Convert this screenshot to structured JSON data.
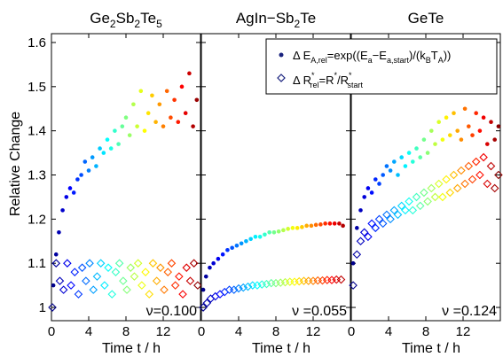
{
  "figure": {
    "ylabel": "Relative Change",
    "legend": {
      "energy": "Δ E",
      "energy_sub": "A,rel",
      "energy_formula": "=exp((E",
      "energy_f_sub1": "a",
      "energy_f_mid": "−E",
      "energy_f_sub2": "a,start",
      "energy_f_mid2": ")/(k",
      "energy_f_sub3": "B",
      "energy_f_mid3": "T",
      "energy_f_sub4": "A",
      "energy_f_end": "))",
      "resist": "Δ R",
      "resist_sup": "*",
      "resist_sub": "rel",
      "resist_formula": "=R",
      "resist_sup2": "*",
      "resist_mid": "/R",
      "resist_sup3": "*",
      "resist_sub3": "start"
    },
    "series_markers": {
      "energy": "dot",
      "resistance": "diamond",
      "color_scale": "jet (time-coded)"
    }
  },
  "chart_data": [
    {
      "type": "scatter",
      "title": "Ge2Sb2Te5",
      "title_parts": [
        "Ge",
        "2",
        "Sb",
        "2",
        "Te",
        "5"
      ],
      "annotation": "ν=0.100",
      "xlabel": "Time t / h",
      "ylabel": "Relative Change",
      "xlim": [
        0,
        16
      ],
      "ylim": [
        0.97,
        1.62
      ],
      "xticks": [
        "0",
        "4",
        "8",
        "12"
      ],
      "yticks": [
        "1",
        "1.1",
        "1.2",
        "1.3",
        "1.4",
        "1.5",
        "1.6"
      ],
      "series": [
        {
          "marker": "dot",
          "points": [
            [
              0.2,
              1.05
            ],
            [
              0.5,
              1.12
            ],
            [
              0.8,
              1.17
            ],
            [
              1.2,
              1.22
            ],
            [
              1.6,
              1.25
            ],
            [
              2.0,
              1.27
            ],
            [
              2.4,
              1.26
            ],
            [
              2.8,
              1.29
            ],
            [
              3.2,
              1.3
            ],
            [
              3.6,
              1.33
            ],
            [
              4.0,
              1.31
            ],
            [
              4.4,
              1.34
            ],
            [
              4.8,
              1.32
            ],
            [
              5.2,
              1.36
            ],
            [
              5.6,
              1.35
            ],
            [
              6.0,
              1.38
            ],
            [
              6.4,
              1.36
            ],
            [
              6.8,
              1.4
            ],
            [
              7.2,
              1.37
            ],
            [
              7.6,
              1.41
            ],
            [
              8.0,
              1.43
            ],
            [
              8.4,
              1.39
            ],
            [
              8.8,
              1.46
            ],
            [
              9.2,
              1.41
            ],
            [
              9.6,
              1.49
            ],
            [
              10.0,
              1.4
            ],
            [
              10.4,
              1.44
            ],
            [
              10.8,
              1.48
            ],
            [
              11.2,
              1.42
            ],
            [
              11.6,
              1.46
            ],
            [
              12.0,
              1.41
            ],
            [
              12.4,
              1.49
            ],
            [
              12.8,
              1.43
            ],
            [
              13.2,
              1.47
            ],
            [
              13.6,
              1.42
            ],
            [
              14.0,
              1.5
            ],
            [
              14.4,
              1.44
            ],
            [
              14.8,
              1.53
            ],
            [
              15.2,
              1.41
            ],
            [
              15.6,
              1.47
            ]
          ]
        },
        {
          "marker": "diamond",
          "points": [
            [
              0.1,
              1.0
            ],
            [
              0.5,
              1.1
            ],
            [
              0.9,
              1.06
            ],
            [
              1.3,
              1.04
            ],
            [
              1.7,
              1.1
            ],
            [
              2.1,
              1.05
            ],
            [
              2.5,
              1.08
            ],
            [
              2.9,
              1.03
            ],
            [
              3.3,
              1.09
            ],
            [
              3.7,
              1.06
            ],
            [
              4.1,
              1.1
            ],
            [
              4.5,
              1.04
            ],
            [
              4.9,
              1.07
            ],
            [
              5.3,
              1.1
            ],
            [
              5.7,
              1.05
            ],
            [
              6.1,
              1.09
            ],
            [
              6.5,
              1.03
            ],
            [
              6.9,
              1.08
            ],
            [
              7.3,
              1.1
            ],
            [
              7.7,
              1.06
            ],
            [
              8.1,
              1.04
            ],
            [
              8.5,
              1.09
            ],
            [
              8.9,
              1.07
            ],
            [
              9.3,
              1.1
            ],
            [
              9.7,
              1.05
            ],
            [
              10.1,
              1.08
            ],
            [
              10.5,
              1.03
            ],
            [
              10.9,
              1.1
            ],
            [
              11.3,
              1.06
            ],
            [
              11.7,
              1.09
            ],
            [
              12.1,
              1.04
            ],
            [
              12.5,
              1.08
            ],
            [
              12.9,
              1.1
            ],
            [
              13.3,
              1.05
            ],
            [
              13.7,
              1.07
            ],
            [
              14.1,
              1.03
            ],
            [
              14.5,
              1.09
            ],
            [
              14.9,
              1.06
            ],
            [
              15.3,
              1.1
            ],
            [
              15.7,
              1.05
            ]
          ]
        }
      ]
    },
    {
      "type": "scatter",
      "title": "AgIn−Sb2Te",
      "title_parts": [
        "AgIn−Sb",
        "2",
        "Te",
        "",
        "",
        ""
      ],
      "annotation": "ν =0.055",
      "xlabel": "Time t / h",
      "xlim": [
        0,
        16
      ],
      "ylim": [
        0.97,
        1.62
      ],
      "xticks": [
        "0",
        "4",
        "8",
        "12"
      ],
      "series": [
        {
          "marker": "dot",
          "points": [
            [
              0.2,
              1.04
            ],
            [
              0.5,
              1.07
            ],
            [
              0.9,
              1.09
            ],
            [
              1.3,
              1.1
            ],
            [
              1.8,
              1.11
            ],
            [
              2.3,
              1.12
            ],
            [
              2.8,
              1.13
            ],
            [
              3.3,
              1.135
            ],
            [
              3.8,
              1.14
            ],
            [
              4.3,
              1.145
            ],
            [
              4.8,
              1.15
            ],
            [
              5.3,
              1.155
            ],
            [
              5.8,
              1.16
            ],
            [
              6.3,
              1.16
            ],
            [
              6.8,
              1.165
            ],
            [
              7.3,
              1.17
            ],
            [
              7.8,
              1.17
            ],
            [
              8.3,
              1.172
            ],
            [
              8.8,
              1.175
            ],
            [
              9.3,
              1.178
            ],
            [
              9.8,
              1.18
            ],
            [
              10.3,
              1.18
            ],
            [
              10.8,
              1.182
            ],
            [
              11.3,
              1.185
            ],
            [
              11.8,
              1.185
            ],
            [
              12.3,
              1.187
            ],
            [
              12.8,
              1.188
            ],
            [
              13.3,
              1.19
            ],
            [
              13.8,
              1.19
            ],
            [
              14.3,
              1.19
            ],
            [
              14.8,
              1.19
            ],
            [
              15.2,
              1.185
            ]
          ]
        },
        {
          "marker": "diamond",
          "points": [
            [
              0.2,
              1.0
            ],
            [
              0.6,
              1.01
            ],
            [
              1.0,
              1.02
            ],
            [
              1.5,
              1.025
            ],
            [
              2.0,
              1.03
            ],
            [
              2.5,
              1.035
            ],
            [
              3.0,
              1.04
            ],
            [
              3.5,
              1.04
            ],
            [
              4.0,
              1.043
            ],
            [
              4.5,
              1.045
            ],
            [
              5.0,
              1.047
            ],
            [
              5.5,
              1.05
            ],
            [
              6.0,
              1.05
            ],
            [
              6.5,
              1.052
            ],
            [
              7.0,
              1.053
            ],
            [
              7.5,
              1.055
            ],
            [
              8.0,
              1.055
            ],
            [
              8.5,
              1.056
            ],
            [
              9.0,
              1.057
            ],
            [
              9.5,
              1.058
            ],
            [
              10.0,
              1.058
            ],
            [
              10.5,
              1.059
            ],
            [
              11.0,
              1.06
            ],
            [
              11.5,
              1.06
            ],
            [
              12.0,
              1.06
            ],
            [
              12.5,
              1.061
            ],
            [
              13.0,
              1.061
            ],
            [
              13.5,
              1.062
            ],
            [
              14.0,
              1.062
            ],
            [
              14.5,
              1.063
            ],
            [
              15.0,
              1.063
            ]
          ]
        }
      ]
    },
    {
      "type": "scatter",
      "title": "GeTe",
      "title_parts": [
        "GeTe",
        "",
        "",
        "",
        "",
        ""
      ],
      "annotation": "ν =0.124",
      "xlabel": "Time t / h",
      "xlim": [
        0,
        16
      ],
      "ylim": [
        0.97,
        1.62
      ],
      "xticks": [
        "0",
        "4",
        "8",
        "12"
      ],
      "series": [
        {
          "marker": "dot",
          "points": [
            [
              0.2,
              1.1
            ],
            [
              0.6,
              1.18
            ],
            [
              1.0,
              1.22
            ],
            [
              1.4,
              1.25
            ],
            [
              1.8,
              1.27
            ],
            [
              2.2,
              1.26
            ],
            [
              2.6,
              1.29
            ],
            [
              3.0,
              1.28
            ],
            [
              3.4,
              1.3
            ],
            [
              3.8,
              1.32
            ],
            [
              4.2,
              1.31
            ],
            [
              4.6,
              1.33
            ],
            [
              5.0,
              1.3
            ],
            [
              5.4,
              1.34
            ],
            [
              5.8,
              1.32
            ],
            [
              6.2,
              1.35
            ],
            [
              6.6,
              1.33
            ],
            [
              7.0,
              1.36
            ],
            [
              7.4,
              1.34
            ],
            [
              7.8,
              1.38
            ],
            [
              8.2,
              1.35
            ],
            [
              8.6,
              1.4
            ],
            [
              9.0,
              1.37
            ],
            [
              9.4,
              1.42
            ],
            [
              9.8,
              1.38
            ],
            [
              10.2,
              1.43
            ],
            [
              10.6,
              1.39
            ],
            [
              11.0,
              1.44
            ],
            [
              11.4,
              1.4
            ],
            [
              11.8,
              1.38
            ],
            [
              12.2,
              1.45
            ],
            [
              12.6,
              1.41
            ],
            [
              13.0,
              1.39
            ],
            [
              13.4,
              1.44
            ],
            [
              13.8,
              1.4
            ],
            [
              14.2,
              1.43
            ],
            [
              14.6,
              1.37
            ],
            [
              15.0,
              1.42
            ],
            [
              15.4,
              1.38
            ],
            [
              15.8,
              1.41
            ]
          ]
        },
        {
          "marker": "diamond",
          "points": [
            [
              0.2,
              1.05
            ],
            [
              0.6,
              1.12
            ],
            [
              1.0,
              1.15
            ],
            [
              1.4,
              1.17
            ],
            [
              1.8,
              1.16
            ],
            [
              2.2,
              1.19
            ],
            [
              2.6,
              1.18
            ],
            [
              3.0,
              1.2
            ],
            [
              3.4,
              1.19
            ],
            [
              3.8,
              1.21
            ],
            [
              4.2,
              1.2
            ],
            [
              4.6,
              1.22
            ],
            [
              5.0,
              1.21
            ],
            [
              5.4,
              1.23
            ],
            [
              5.8,
              1.22
            ],
            [
              6.2,
              1.24
            ],
            [
              6.6,
              1.22
            ],
            [
              7.0,
              1.25
            ],
            [
              7.4,
              1.23
            ],
            [
              7.8,
              1.26
            ],
            [
              8.2,
              1.24
            ],
            [
              8.6,
              1.27
            ],
            [
              9.0,
              1.25
            ],
            [
              9.4,
              1.28
            ],
            [
              9.8,
              1.25
            ],
            [
              10.2,
              1.29
            ],
            [
              10.6,
              1.26
            ],
            [
              11.0,
              1.3
            ],
            [
              11.4,
              1.27
            ],
            [
              11.8,
              1.31
            ],
            [
              12.2,
              1.28
            ],
            [
              12.6,
              1.32
            ],
            [
              13.0,
              1.29
            ],
            [
              13.4,
              1.33
            ],
            [
              13.8,
              1.3
            ],
            [
              14.2,
              1.34
            ],
            [
              14.6,
              1.28
            ],
            [
              15.0,
              1.32
            ],
            [
              15.4,
              1.27
            ],
            [
              15.8,
              1.3
            ]
          ]
        }
      ]
    }
  ]
}
